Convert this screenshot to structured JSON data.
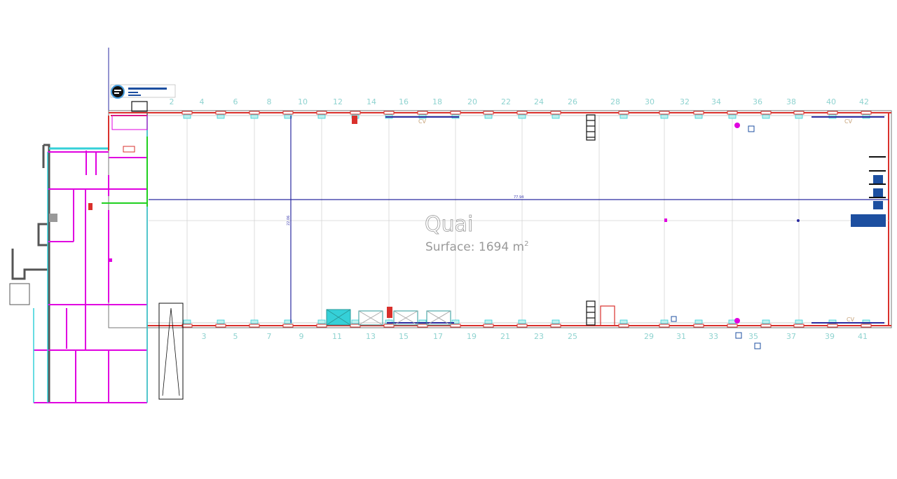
{
  "plan": {
    "room": {
      "name": "Quai",
      "surface": "Surface: 1694 m",
      "surface_unit_exponent": "2"
    },
    "dimensions": {
      "length": "77.94",
      "width": "22.06"
    },
    "grid_top": [
      "2",
      "4",
      "6",
      "8",
      "10",
      "12",
      "14",
      "16",
      "18",
      "20",
      "22",
      "24",
      "26",
      "28",
      "30",
      "32",
      "34",
      "36",
      "38",
      "40",
      "42"
    ],
    "grid_bottom": [
      "3",
      "5",
      "7",
      "9",
      "11",
      "13",
      "15",
      "17",
      "19",
      "21",
      "23",
      "25",
      "29",
      "31",
      "33",
      "35",
      "37",
      "39",
      "41"
    ],
    "cv_labels": [
      "CV",
      "CV",
      "CV"
    ],
    "colors": {
      "exterior_wall": "#d9302c",
      "partition": "#e000e0",
      "glazing": "#35d0d8",
      "dimension_line": "#2a2aa0",
      "grid_line": "#cccccc",
      "grid_number": "#8fd3d0",
      "technical": "#1fd01f",
      "equipment": "#1d4fa0"
    },
    "icons": {
      "logo": "speech-bubble-logo"
    }
  }
}
